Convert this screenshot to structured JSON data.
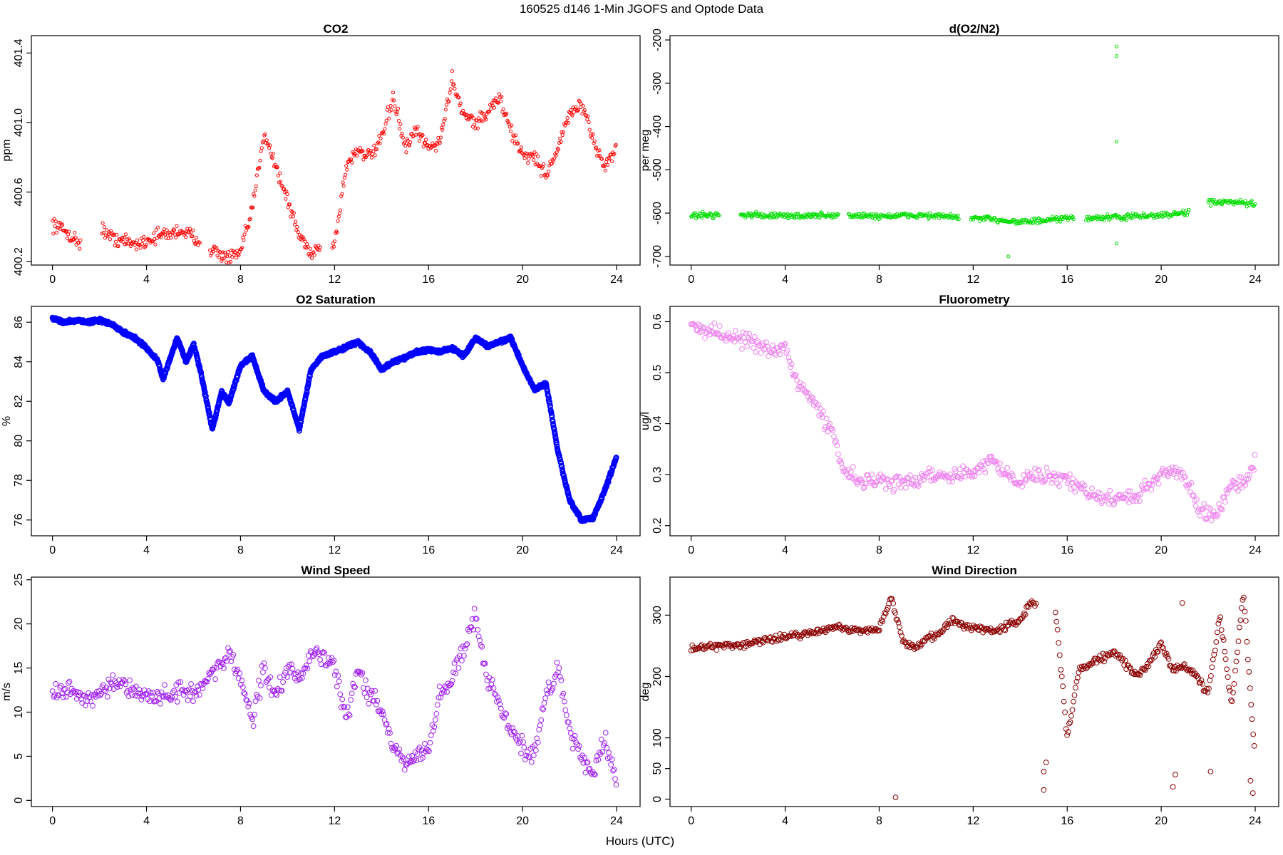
{
  "figure": {
    "title": "160525   d146   1-Min  JGOFS and Optode Data",
    "xlabel": "Hours (UTC)"
  },
  "chart_data": [
    {
      "id": "co2",
      "type": "scatter",
      "title": "CO2",
      "ylabel": "ppm",
      "color": "#ff0000",
      "marker_size": "small",
      "y_tick_rotation": "vertical",
      "xlim": [
        -0.9,
        25
      ],
      "ylim": [
        400.18,
        401.5
      ],
      "xticks": [
        0,
        4,
        8,
        12,
        16,
        20,
        24
      ],
      "yticks": [
        400.2,
        400.6,
        401.0,
        401.4
      ],
      "segments": [
        [
          0.0,
          1.2
        ],
        [
          2.1,
          6.3
        ],
        [
          6.7,
          11.4
        ],
        [
          11.9,
          24.0
        ]
      ],
      "x": [
        0,
        0.5,
        1,
        1.5,
        2,
        2.5,
        3,
        3.5,
        4,
        4.5,
        5,
        5.5,
        6,
        6.5,
        7,
        7.5,
        8,
        8.5,
        9,
        9.5,
        10,
        10.5,
        11,
        11.5,
        12,
        12.5,
        13,
        13.5,
        14,
        14.5,
        15,
        15.5,
        16,
        16.5,
        17,
        17.5,
        18,
        18.5,
        19,
        19.5,
        20,
        20.5,
        21,
        21.5,
        22,
        22.5,
        23,
        23.5,
        24
      ],
      "y": [
        400.42,
        400.38,
        400.32,
        400.3,
        400.4,
        400.34,
        400.32,
        400.3,
        400.32,
        400.35,
        400.36,
        400.38,
        400.34,
        400.3,
        400.25,
        400.22,
        400.25,
        400.5,
        400.95,
        400.75,
        400.55,
        400.35,
        400.25,
        400.3,
        400.3,
        400.75,
        400.85,
        400.8,
        400.9,
        401.15,
        400.85,
        400.95,
        400.85,
        400.9,
        401.25,
        401.05,
        401.0,
        401.05,
        401.15,
        400.95,
        400.82,
        400.8,
        400.7,
        400.85,
        401.05,
        401.1,
        400.9,
        400.75,
        400.85
      ],
      "spread": 0.06
    },
    {
      "id": "do2n2",
      "type": "scatter",
      "title": "d(O2/N2)",
      "ylabel": "per meg",
      "color": "#00dd00",
      "marker_size": "small",
      "y_tick_rotation": "vertical",
      "xlim": [
        -0.9,
        25
      ],
      "ylim": [
        -720,
        -190
      ],
      "xticks": [
        0,
        4,
        8,
        12,
        16,
        20,
        24
      ],
      "yticks": [
        -200,
        -300,
        -400,
        -500,
        -600,
        -700
      ],
      "segments": [
        [
          0.0,
          1.2
        ],
        [
          2.1,
          6.3
        ],
        [
          6.7,
          11.4
        ],
        [
          11.9,
          16.3
        ],
        [
          16.8,
          21.2
        ],
        [
          22.0,
          24.0
        ]
      ],
      "x": [
        0,
        2,
        4,
        6,
        8,
        10,
        12,
        13,
        14,
        15,
        16,
        18,
        20,
        21,
        22,
        23,
        24
      ],
      "y": [
        -605,
        -603,
        -607,
        -605,
        -607,
        -605,
        -612,
        -615,
        -620,
        -618,
        -612,
        -610,
        -605,
        -600,
        -575,
        -575,
        -580
      ],
      "spread": 10,
      "outliers": [
        {
          "x": 18.1,
          "y": -215
        },
        {
          "x": 18.1,
          "y": -237
        },
        {
          "x": 18.1,
          "y": -435
        },
        {
          "x": 18.1,
          "y": -670
        },
        {
          "x": 13.5,
          "y": -700
        }
      ]
    },
    {
      "id": "o2sat",
      "type": "scatter",
      "title": "O2 Saturation",
      "ylabel": "%",
      "color": "#0000ff",
      "marker_size": "dense-line",
      "y_tick_rotation": "vertical",
      "xlim": [
        -0.9,
        25
      ],
      "ylim": [
        75.2,
        86.8
      ],
      "xticks": [
        0,
        4,
        8,
        12,
        16,
        20,
        24
      ],
      "yticks": [
        76,
        78,
        80,
        82,
        84,
        86
      ],
      "segments": [
        [
          0.0,
          24.0
        ]
      ],
      "x": [
        0,
        0.5,
        1,
        1.5,
        2,
        2.5,
        3,
        3.5,
        4,
        4.5,
        4.7,
        5.3,
        5.7,
        6,
        6.3,
        6.8,
        7.2,
        7.5,
        8,
        8.5,
        9,
        9.5,
        10,
        10.5,
        11,
        11.5,
        12,
        13,
        13.5,
        14,
        14.5,
        15,
        15.5,
        16,
        16.5,
        17,
        17.5,
        18,
        18.5,
        19,
        19.5,
        20,
        20.5,
        21,
        21.5,
        22,
        22.5,
        23,
        23.5,
        24
      ],
      "y": [
        86.2,
        86.0,
        86.1,
        86.0,
        86.1,
        85.9,
        85.5,
        85.2,
        84.7,
        84.0,
        83.1,
        85.2,
        84.0,
        84.9,
        83.5,
        80.6,
        82.5,
        81.9,
        83.8,
        84.3,
        82.5,
        82.0,
        82.5,
        80.6,
        83.6,
        84.3,
        84.5,
        85.0,
        84.5,
        83.6,
        84.0,
        84.2,
        84.5,
        84.6,
        84.5,
        84.7,
        84.3,
        85.2,
        84.8,
        85.0,
        85.2,
        83.8,
        82.6,
        82.9,
        79.5,
        77.0,
        76.0,
        76.1,
        77.5,
        79.2
      ],
      "spread": 0.12
    },
    {
      "id": "fluor",
      "type": "scatter",
      "title": "Fluorometry",
      "ylabel": "ug/l",
      "color": "#ee82ee",
      "marker_size": "medium",
      "y_tick_rotation": "vertical",
      "xlim": [
        -0.9,
        25
      ],
      "ylim": [
        0.18,
        0.63
      ],
      "xticks": [
        0,
        4,
        8,
        12,
        16,
        20,
        24
      ],
      "yticks": [
        0.2,
        0.3,
        0.4,
        0.5,
        0.6
      ],
      "segments": [
        [
          0.0,
          24.0
        ]
      ],
      "x": [
        0,
        1,
        2,
        3,
        3.5,
        4,
        4.5,
        5,
        5.5,
        6,
        6.5,
        7,
        8,
        9,
        10,
        11,
        12,
        12.8,
        13.5,
        14,
        15,
        16,
        17,
        18,
        19,
        20,
        20.5,
        21,
        21.5,
        22,
        22.5,
        23,
        23.5,
        24
      ],
      "y": [
        0.59,
        0.58,
        0.57,
        0.55,
        0.54,
        0.55,
        0.48,
        0.46,
        0.42,
        0.38,
        0.31,
        0.29,
        0.29,
        0.28,
        0.3,
        0.3,
        0.3,
        0.33,
        0.3,
        0.29,
        0.3,
        0.29,
        0.26,
        0.25,
        0.26,
        0.3,
        0.31,
        0.3,
        0.24,
        0.22,
        0.23,
        0.29,
        0.28,
        0.33
      ],
      "spread": 0.022
    },
    {
      "id": "wspd",
      "type": "scatter",
      "title": "Wind Speed",
      "ylabel": "m/s",
      "color": "#a020f0",
      "marker_size": "medium",
      "y_tick_rotation": "vertical",
      "xlim": [
        -0.9,
        25
      ],
      "ylim": [
        -0.7,
        25.3
      ],
      "xticks": [
        0,
        4,
        8,
        12,
        16,
        20,
        24
      ],
      "yticks": [
        0,
        5,
        10,
        15,
        20,
        25
      ],
      "segments": [
        [
          0.0,
          24.0
        ]
      ],
      "x": [
        0,
        0.5,
        1,
        1.5,
        2,
        2.5,
        3,
        3.5,
        4,
        4.5,
        5,
        5.5,
        6,
        6.5,
        7,
        7.5,
        8,
        8.5,
        9,
        9.5,
        10,
        10.5,
        11,
        11.5,
        12,
        12.5,
        13,
        13.5,
        14,
        14.5,
        15,
        15.5,
        16,
        16.5,
        17,
        17.5,
        18,
        18.5,
        19,
        19.5,
        20,
        20.5,
        21,
        21.5,
        22,
        22.5,
        23,
        23.5,
        24
      ],
      "y": [
        12,
        12.5,
        12,
        11.5,
        12,
        13,
        13,
        12,
        12,
        11.5,
        12,
        12.5,
        12,
        13.5,
        15,
        16.5,
        14,
        9,
        15,
        12,
        15,
        14,
        16.5,
        16,
        15,
        9,
        15,
        12,
        10,
        6,
        4,
        5,
        6,
        12,
        14,
        17,
        21,
        14,
        11,
        8,
        6,
        5,
        12,
        15,
        8,
        5,
        3,
        7,
        2
      ],
      "spread": 1.6
    },
    {
      "id": "wdir",
      "type": "scatter",
      "title": "Wind Direction",
      "ylabel": "deg",
      "color": "#8b0000",
      "marker_size": "medium",
      "y_tick_rotation": "vertical",
      "xlim": [
        -0.9,
        25
      ],
      "ylim": [
        -12,
        362
      ],
      "xticks": [
        0,
        4,
        8,
        12,
        16,
        20,
        24
      ],
      "yticks": [
        0,
        50,
        100,
        200,
        300
      ],
      "segments": [
        [
          0.0,
          14.7
        ],
        [
          15.5,
          24.0
        ]
      ],
      "x": [
        0,
        1,
        2,
        3,
        4,
        5,
        6,
        7,
        8,
        8.5,
        9,
        9.5,
        10,
        10.5,
        11,
        12,
        13,
        14,
        14.5,
        15.5,
        16,
        16.5,
        17,
        18,
        19,
        20,
        20.5,
        21,
        21.5,
        22,
        22.5,
        23,
        23.5,
        24
      ],
      "y": [
        245,
        250,
        252,
        258,
        265,
        270,
        280,
        275,
        275,
        330,
        260,
        245,
        260,
        270,
        290,
        280,
        275,
        290,
        320,
        310,
        100,
        210,
        220,
        240,
        200,
        250,
        210,
        220,
        200,
        170,
        300,
        150,
        340,
        60
      ],
      "spread": 9,
      "outliers": [
        {
          "x": 8.7,
          "y": 3
        },
        {
          "x": 15.0,
          "y": 15
        },
        {
          "x": 15.0,
          "y": 45
        },
        {
          "x": 15.1,
          "y": 60
        },
        {
          "x": 20.5,
          "y": 20
        },
        {
          "x": 20.6,
          "y": 40
        },
        {
          "x": 20.9,
          "y": 320
        },
        {
          "x": 22.1,
          "y": 45
        },
        {
          "x": 23.9,
          "y": 10
        },
        {
          "x": 23.8,
          "y": 30
        }
      ]
    }
  ]
}
